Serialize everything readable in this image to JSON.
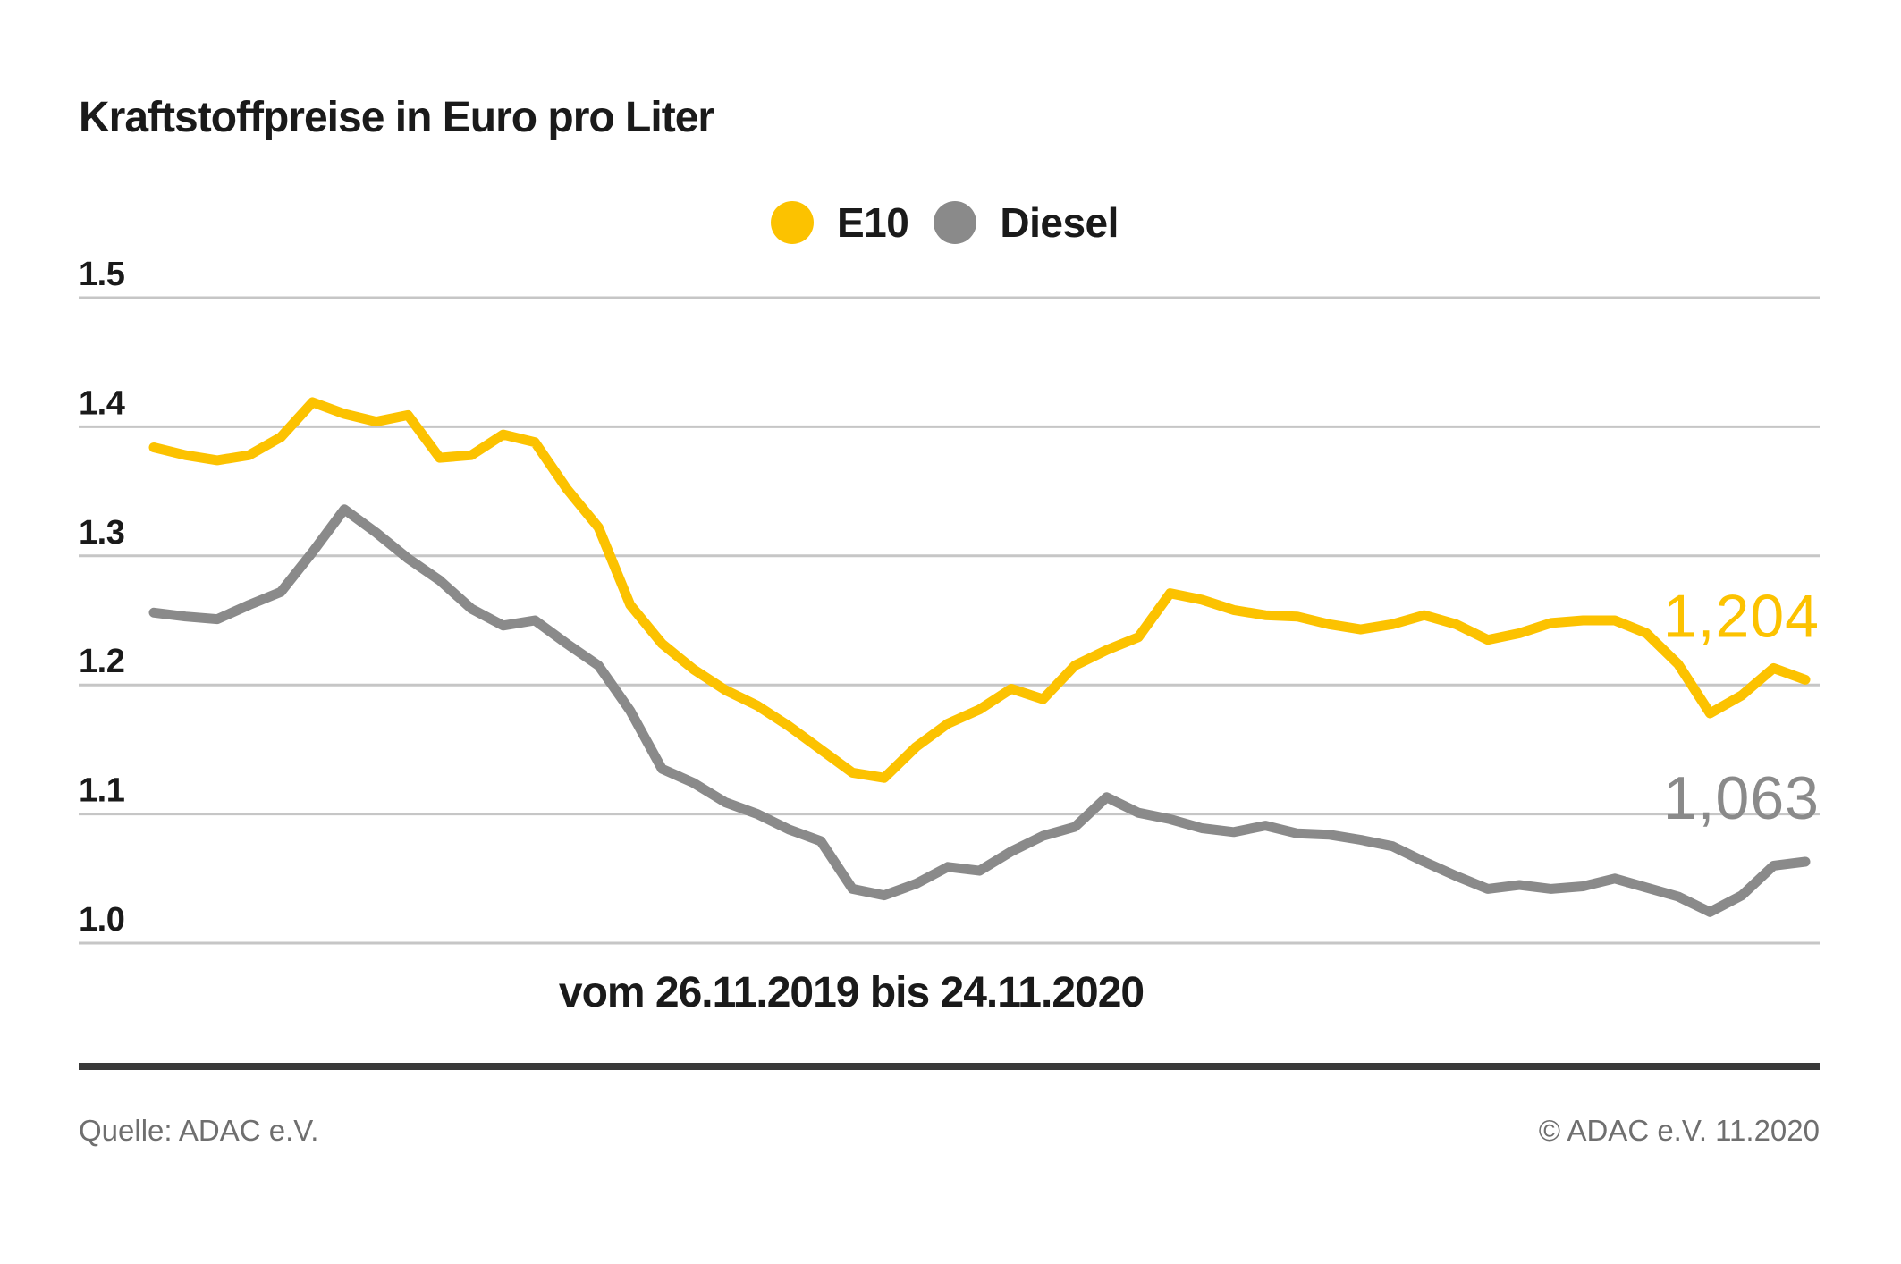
{
  "title": "Kraftstoffpreise in Euro pro Liter",
  "legend": [
    {
      "label": "E10",
      "color": "#FCC200"
    },
    {
      "label": "Diesel",
      "color": "#8A8A8A"
    }
  ],
  "chart_data": {
    "type": "line",
    "title": "Kraftstoffpreise in Euro pro Liter",
    "x_caption": "vom 26.11.2019 bis 24.11.2020",
    "date_from": "26.11.2019",
    "date_to": "24.11.2020",
    "x_interval": "weekly",
    "ylabel": "Euro pro Liter",
    "ylim": [
      1.0,
      1.5
    ],
    "yticks": [
      "1.5",
      "1.4",
      "1.3",
      "1.2",
      "1.1",
      "1.0"
    ],
    "grid": true,
    "gridline_color": "#c6c6c6",
    "legend_position": "top-center",
    "series": [
      {
        "name": "E10",
        "color": "#FCC200",
        "end_label": "1,204",
        "end_value": 1.204,
        "values": [
          1.384,
          1.378,
          1.374,
          1.378,
          1.392,
          1.419,
          1.41,
          1.404,
          1.409,
          1.376,
          1.378,
          1.394,
          1.388,
          1.352,
          1.322,
          1.262,
          1.232,
          1.212,
          1.196,
          1.184,
          1.168,
          1.15,
          1.132,
          1.128,
          1.152,
          1.17,
          1.181,
          1.197,
          1.189,
          1.215,
          1.227,
          1.237,
          1.271,
          1.266,
          1.258,
          1.254,
          1.253,
          1.247,
          1.243,
          1.247,
          1.254,
          1.247,
          1.235,
          1.24,
          1.248,
          1.25,
          1.25,
          1.24,
          1.216,
          1.178,
          1.192,
          1.213,
          1.204
        ]
      },
      {
        "name": "Diesel",
        "color": "#8A8A8A",
        "end_label": "1,063",
        "end_value": 1.063,
        "values": [
          1.256,
          1.253,
          1.251,
          1.262,
          1.272,
          1.303,
          1.336,
          1.318,
          1.298,
          1.281,
          1.259,
          1.246,
          1.25,
          1.232,
          1.215,
          1.18,
          1.135,
          1.124,
          1.109,
          1.1,
          1.088,
          1.079,
          1.042,
          1.037,
          1.046,
          1.059,
          1.056,
          1.071,
          1.083,
          1.09,
          1.113,
          1.101,
          1.096,
          1.089,
          1.086,
          1.091,
          1.085,
          1.084,
          1.08,
          1.075,
          1.063,
          1.052,
          1.042,
          1.045,
          1.042,
          1.044,
          1.05,
          1.043,
          1.036,
          1.024,
          1.037,
          1.06,
          1.063
        ]
      }
    ]
  },
  "footer": {
    "source": "Quelle: ADAC e.V.",
    "copyright": "© ADAC e.V. 11.2020"
  }
}
